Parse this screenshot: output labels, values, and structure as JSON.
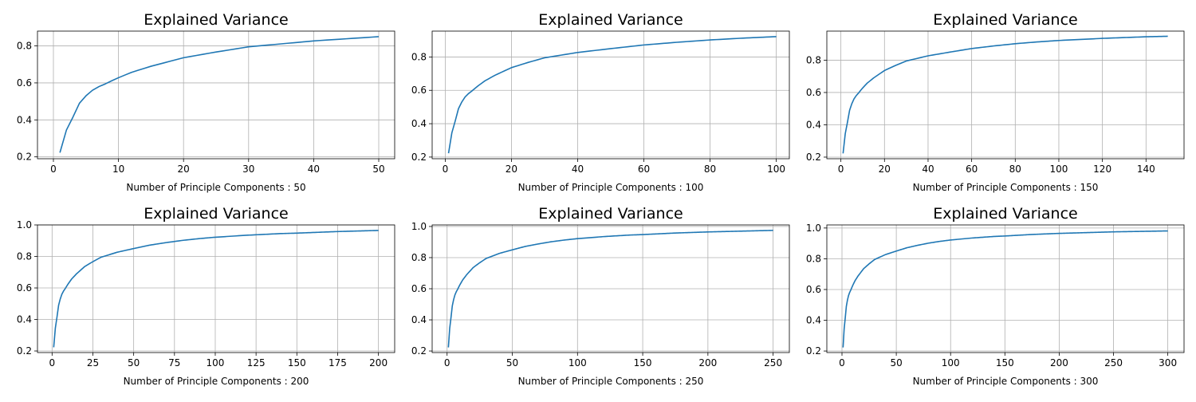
{
  "chart_data": [
    {
      "type": "line",
      "title": "Explained Variance",
      "xlabel": "Number of Principle Components : 50",
      "ylabel": "",
      "xlim": [
        -2.45,
        52.45
      ],
      "ylim": [
        0.19,
        0.88
      ],
      "xticks": [
        0,
        10,
        20,
        30,
        40,
        50
      ],
      "yticks": [
        0.2,
        0.4,
        0.6,
        0.8
      ],
      "grid": true,
      "color": "#1f77b4",
      "n": 50
    },
    {
      "type": "line",
      "title": "Explained Variance",
      "xlabel": "Number of Principle Components : 100",
      "ylabel": "",
      "xlim": [
        -3.95,
        103.95
      ],
      "ylim": [
        0.19,
        0.955
      ],
      "xticks": [
        0,
        20,
        40,
        60,
        80,
        100
      ],
      "yticks": [
        0.2,
        0.4,
        0.6,
        0.8
      ],
      "grid": true,
      "color": "#1f77b4",
      "n": 100
    },
    {
      "type": "line",
      "title": "Explained Variance",
      "xlabel": "Number of Principle Components : 150",
      "ylabel": "",
      "xlim": [
        -6.45,
        157.45
      ],
      "ylim": [
        0.19,
        0.98
      ],
      "xticks": [
        0,
        20,
        40,
        60,
        80,
        100,
        120,
        140
      ],
      "yticks": [
        0.2,
        0.4,
        0.6,
        0.8
      ],
      "grid": true,
      "color": "#1f77b4",
      "n": 150
    },
    {
      "type": "line",
      "title": "Explained Variance",
      "xlabel": "Number of Principle Components : 200",
      "ylabel": "",
      "xlim": [
        -8.95,
        209.95
      ],
      "ylim": [
        0.19,
        1.0
      ],
      "xticks": [
        0,
        25,
        50,
        75,
        100,
        125,
        150,
        175,
        200
      ],
      "yticks": [
        0.2,
        0.4,
        0.6,
        0.8,
        1.0
      ],
      "grid": true,
      "color": "#1f77b4",
      "n": 200
    },
    {
      "type": "line",
      "title": "Explained Variance",
      "xlabel": "Number of Principle Components : 250",
      "ylabel": "",
      "xlim": [
        -11.45,
        262.45
      ],
      "ylim": [
        0.19,
        1.01
      ],
      "xticks": [
        0,
        50,
        100,
        150,
        200,
        250
      ],
      "yticks": [
        0.2,
        0.4,
        0.6,
        0.8,
        1.0
      ],
      "grid": true,
      "color": "#1f77b4",
      "n": 250
    },
    {
      "type": "line",
      "title": "Explained Variance",
      "xlabel": "Number of Principle Components : 300",
      "ylabel": "",
      "xlim": [
        -13.95,
        314.95
      ],
      "ylim": [
        0.19,
        1.02
      ],
      "xticks": [
        0,
        50,
        100,
        150,
        200,
        250,
        300
      ],
      "yticks": [
        0.2,
        0.4,
        0.6,
        0.8,
        1.0
      ],
      "grid": true,
      "color": "#1f77b4",
      "n": 300
    }
  ],
  "cumulative_variance": {
    "x": [
      1,
      2,
      3,
      4,
      5,
      6,
      7,
      8,
      9,
      10,
      12,
      15,
      20,
      25,
      30,
      40,
      50,
      60,
      70,
      80,
      90,
      100,
      120,
      140,
      150,
      175,
      200,
      225,
      250,
      275,
      300
    ],
    "y": [
      0.223,
      0.345,
      0.415,
      0.49,
      0.53,
      0.56,
      0.58,
      0.595,
      0.612,
      0.628,
      0.657,
      0.69,
      0.736,
      0.767,
      0.795,
      0.827,
      0.85,
      0.872,
      0.888,
      0.902,
      0.913,
      0.922,
      0.935,
      0.945,
      0.948,
      0.958,
      0.965,
      0.97,
      0.975,
      0.978,
      0.981
    ]
  }
}
